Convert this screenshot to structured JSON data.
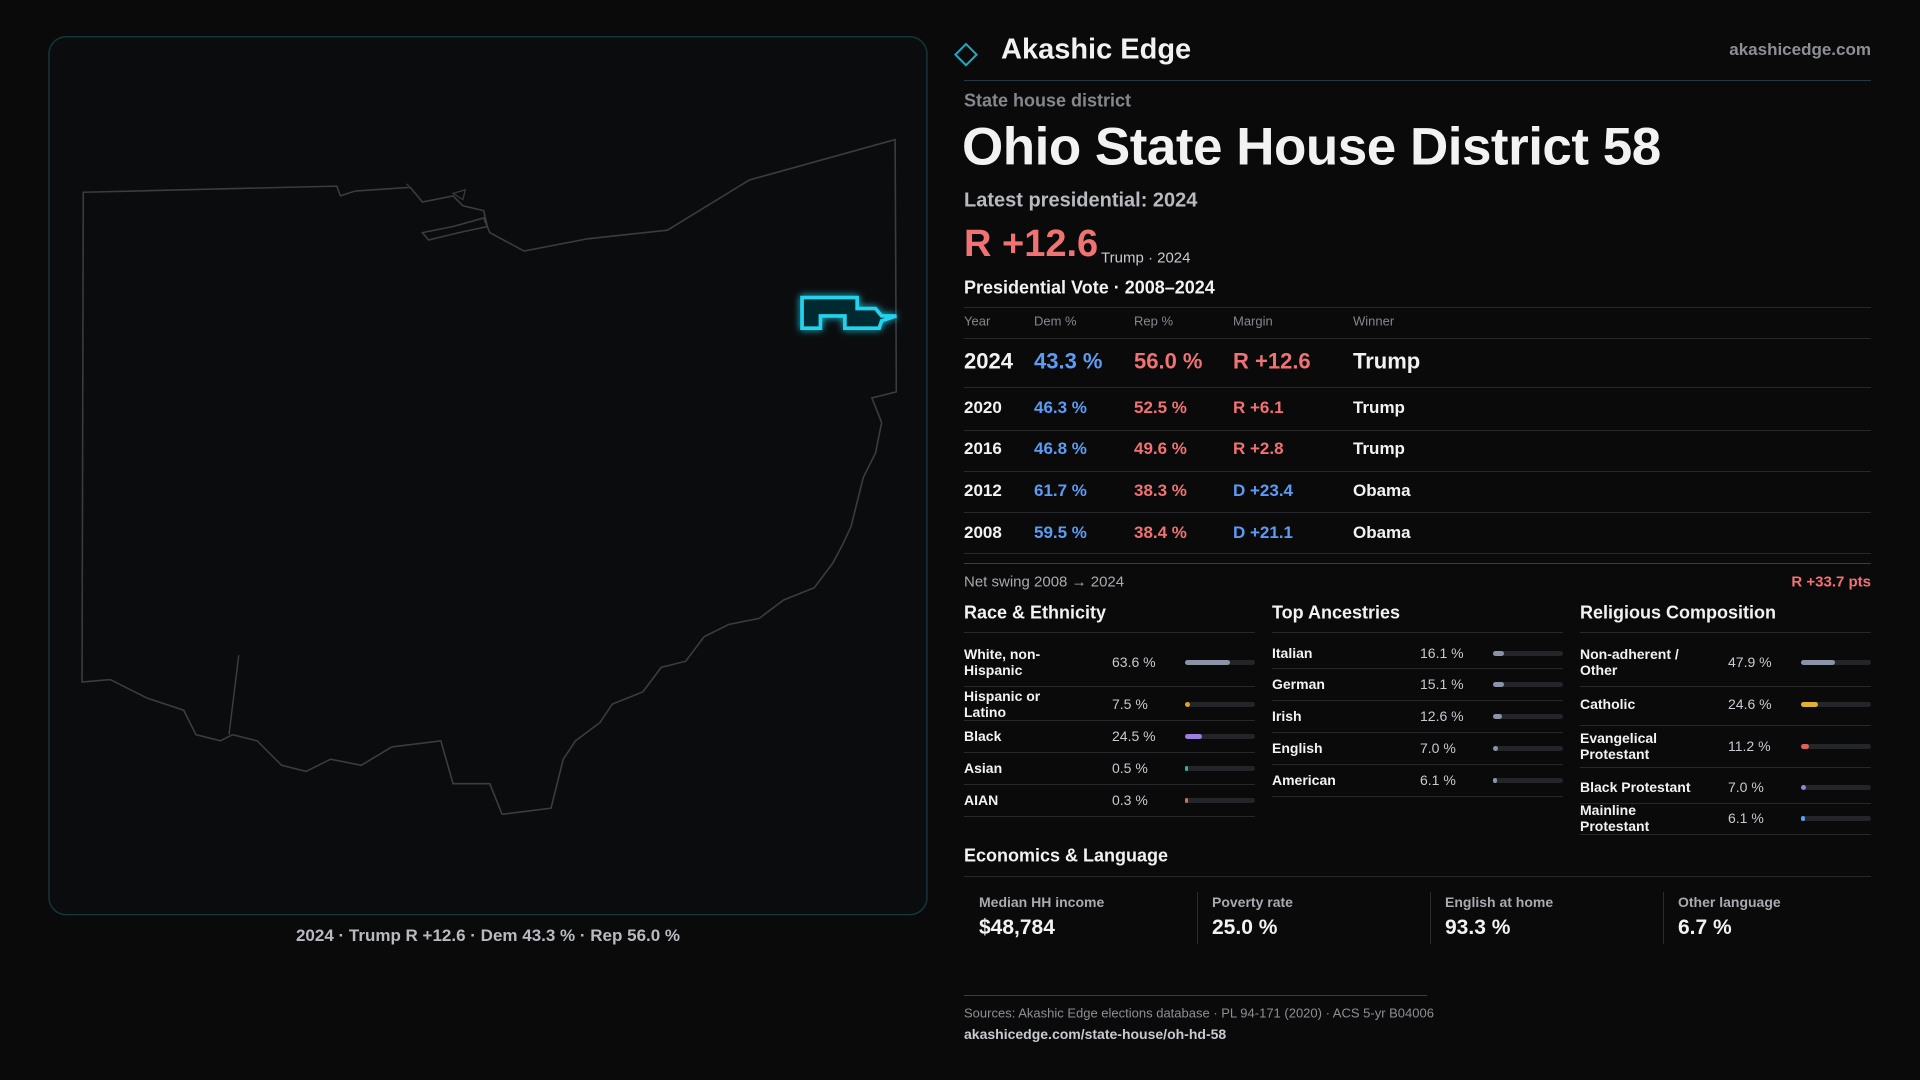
{
  "header": {
    "brand": "Akashic Edge",
    "site": "akashicedge.com"
  },
  "map": {
    "caption": "2024 · Trump R +12.6 · Dem 43.3 % · Rep 56.0 %"
  },
  "district": {
    "kind": "State house district",
    "title": "Ohio State House District 58",
    "latest": "Latest presidential: 2024",
    "margin": "R +12.6",
    "margin_note": "Trump · 2024"
  },
  "dem_color": "#5b9cf5",
  "rep_color": "#f07272",
  "votes": {
    "title": "Presidential Vote · 2008–2024",
    "columns": [
      "Year",
      "Dem %",
      "Rep %",
      "Margin",
      "Winner"
    ],
    "rows": [
      {
        "year": "2024",
        "dem": "43.3 %",
        "rep": "56.0 %",
        "margin": "R +12.6",
        "winner": "Trump",
        "margin_color": "#f07272"
      },
      {
        "year": "2020",
        "dem": "46.3 %",
        "rep": "52.5 %",
        "margin": "R +6.1",
        "winner": "Trump",
        "margin_color": "#f07272"
      },
      {
        "year": "2016",
        "dem": "46.8 %",
        "rep": "49.6 %",
        "margin": "R +2.8",
        "winner": "Trump",
        "margin_color": "#f07272"
      },
      {
        "year": "2012",
        "dem": "61.7 %",
        "rep": "38.3 %",
        "margin": "D +23.4",
        "winner": "Obama",
        "margin_color": "#5b9cf5"
      },
      {
        "year": "2008",
        "dem": "59.5 %",
        "rep": "38.4 %",
        "margin": "D +21.1",
        "winner": "Obama",
        "margin_color": "#5b9cf5"
      }
    ],
    "swing_label": "Net swing 2008 → 2024",
    "swing": "R +33.7 pts"
  },
  "demographics": [
    {
      "title": "Race & Ethnicity",
      "xlim": [
        0,
        100
      ],
      "items": [
        {
          "label": "White, non-Hispanic",
          "value": 63.6,
          "value_label": "63.6 %",
          "color": "#8a94a6"
        },
        {
          "label": "Hispanic or Latino",
          "value": 7.5,
          "value_label": "7.5 %",
          "color": "#e0a030"
        },
        {
          "label": "Black",
          "value": 24.5,
          "value_label": "24.5 %",
          "color": "#9b7fe0"
        },
        {
          "label": "Asian",
          "value": 0.5,
          "value_label": "0.5 %",
          "color": "#2fb5a6"
        },
        {
          "label": "AIAN",
          "value": 0.3,
          "value_label": "0.3 %",
          "color": "#c07a50"
        }
      ]
    },
    {
      "title": "Top Ancestries",
      "xlim": [
        0,
        100
      ],
      "items": [
        {
          "label": "Italian",
          "value": 16.1,
          "value_label": "16.1 %",
          "color": "#8a94a6"
        },
        {
          "label": "German",
          "value": 15.1,
          "value_label": "15.1 %",
          "color": "#8a94a6"
        },
        {
          "label": "Irish",
          "value": 12.6,
          "value_label": "12.6 %",
          "color": "#8a94a6"
        },
        {
          "label": "English",
          "value": 7.0,
          "value_label": "7.0 %",
          "color": "#8a94a6"
        },
        {
          "label": "American",
          "value": 6.1,
          "value_label": "6.1 %",
          "color": "#8a94a6"
        }
      ]
    },
    {
      "title": "Religious Composition",
      "xlim": [
        0,
        100
      ],
      "items": [
        {
          "label": "Non-adherent / Other",
          "value": 47.9,
          "value_label": "47.9 %",
          "color": "#8a94a6"
        },
        {
          "label": "Catholic",
          "value": 24.6,
          "value_label": "24.6 %",
          "color": "#e0b030"
        },
        {
          "label": "Evangelical Protestant",
          "value": 11.2,
          "value_label": "11.2 %",
          "color": "#e06060"
        },
        {
          "label": "Black Protestant",
          "value": 7.0,
          "value_label": "7.0 %",
          "color": "#9b7fe0"
        },
        {
          "label": "Mainline Protestant",
          "value": 6.1,
          "value_label": "6.1 %",
          "color": "#5b9cf5"
        }
      ]
    }
  ],
  "economics": {
    "title": "Economics & Language",
    "stats": [
      {
        "label": "Median HH income",
        "value": "$48,784"
      },
      {
        "label": "Poverty rate",
        "value": "25.0 %"
      },
      {
        "label": "English at home",
        "value": "93.3 %"
      },
      {
        "label": "Other language",
        "value": "6.7 %"
      }
    ]
  },
  "sources": {
    "text": "Sources: Akashic Edge elections database · PL 94-171 (2020) · ACS 5-yr B04006",
    "url": "akashicedge.com/state-house/oh-hd-58"
  }
}
